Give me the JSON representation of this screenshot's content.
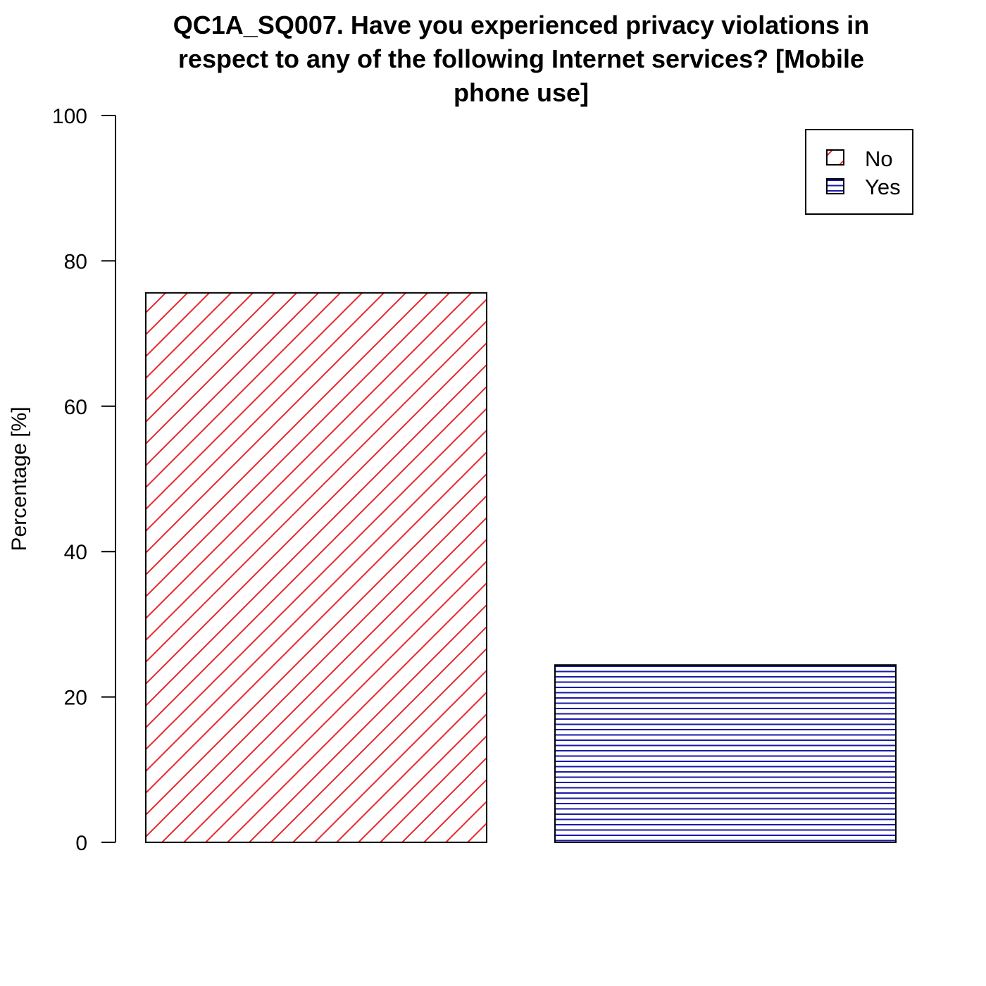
{
  "chart_data": {
    "type": "bar",
    "title_lines": [
      "QC1A_SQ007. Have you experienced privacy violations in",
      "respect to any of the following Internet services? [Mobile",
      "phone use]"
    ],
    "xlabel": "",
    "ylabel": "Percentage [%]",
    "ylim": [
      0,
      100
    ],
    "yticks": [
      0,
      20,
      40,
      60,
      80,
      100
    ],
    "grid": false,
    "legend_position": "top-right",
    "categories": [
      "No",
      "Yes"
    ],
    "values": [
      75.6,
      24.4
    ],
    "colors": [
      "#e8262a",
      "#1a1aa6"
    ],
    "patterns": [
      "diagonal-hatch",
      "horizontal-hatch"
    ]
  }
}
